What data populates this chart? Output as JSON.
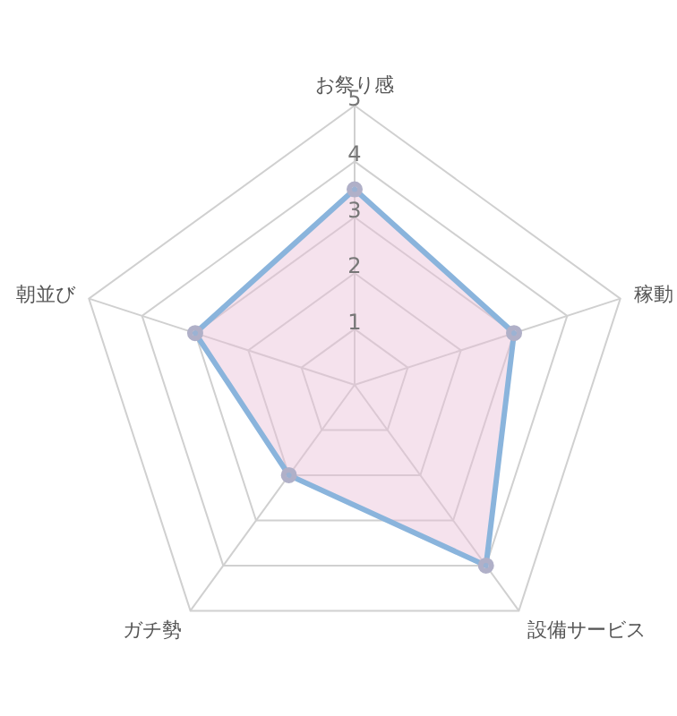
{
  "chart_data": {
    "type": "radar",
    "categories": [
      "お祭り感",
      "稼動",
      "設備サービス",
      "ガチ勢",
      "朝並び"
    ],
    "series": [
      {
        "color": "#8ab4dc",
        "values": [
          3.5,
          3,
          4,
          2,
          3
        ]
      }
    ],
    "ylim": [
      0,
      5
    ],
    "yticks": [
      1,
      2,
      3,
      4,
      5
    ],
    "grid": true,
    "marker": "circle"
  }
}
